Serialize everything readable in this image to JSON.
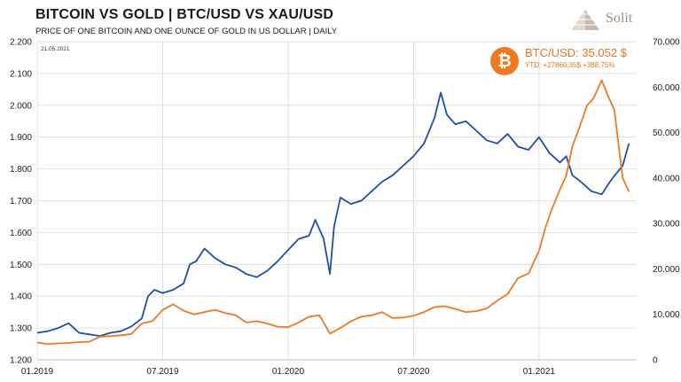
{
  "header": {
    "title": "BITCOIN VS GOLD | BTC/USD VS XAU/USD",
    "subtitle": "PRICE OF ONE BITCOIN AND ONE OUNCE OF GOLD  IN US DOLLAR | DAILY",
    "date": "21.05.2021"
  },
  "logo": {
    "text": "Solit",
    "icon": "pyramid-icon"
  },
  "badge": {
    "symbol": "₿",
    "icon": "bitcoin-icon",
    "label": "BTC/USD: 35.052 $",
    "ytd": "YTD:   +27860,35$   +388,75%"
  },
  "chart_data": {
    "type": "line",
    "x_ticks": [
      "01.2019",
      "07.2019",
      "01.2020",
      "07.2020",
      "01.2021"
    ],
    "x_tick_pos": [
      0,
      6,
      12,
      18,
      24
    ],
    "x_range": [
      0,
      28.67
    ],
    "left_axis": {
      "series": "Gold",
      "ylim": [
        1200,
        2200
      ],
      "ticks": [
        "1.200",
        "1.300",
        "1.400",
        "1.500",
        "1.600",
        "1.700",
        "1.800",
        "1.900",
        "2.000",
        "2.100",
        "2.200"
      ],
      "tick_values": [
        1200,
        1300,
        1400,
        1500,
        1600,
        1700,
        1800,
        1900,
        2000,
        2100,
        2200
      ]
    },
    "right_axis": {
      "series": "BTC/USD",
      "ylim": [
        0,
        70000
      ],
      "ticks": [
        "0",
        "10.000",
        "20.000",
        "30.000",
        "40.000",
        "50.000",
        "60.000",
        "70.000"
      ],
      "tick_values": [
        0,
        10000,
        20000,
        30000,
        40000,
        50000,
        60000,
        70000
      ]
    },
    "grid": true,
    "series": [
      {
        "key": "gold",
        "axis": "left",
        "color": "#1f4fa8",
        "x": [
          0,
          0.5,
          1,
          1.5,
          2,
          2.5,
          3,
          3.5,
          4,
          4.5,
          5,
          5.3,
          5.6,
          6,
          6.5,
          7,
          7.3,
          7.6,
          8,
          8.5,
          9,
          9.5,
          10,
          10.5,
          11,
          11.5,
          12,
          12.5,
          13,
          13.3,
          13.7,
          14,
          14.2,
          14.5,
          15,
          15.5,
          16,
          16.5,
          17,
          17.5,
          18,
          18.5,
          19,
          19.3,
          19.6,
          20,
          20.5,
          21,
          21.5,
          22,
          22.5,
          23,
          23.5,
          24,
          24.5,
          25,
          25.3,
          25.6,
          26,
          26.5,
          27,
          27.5,
          28,
          28.3
        ],
        "y": [
          1285,
          1290,
          1300,
          1315,
          1285,
          1280,
          1275,
          1285,
          1290,
          1305,
          1330,
          1400,
          1420,
          1410,
          1420,
          1440,
          1500,
          1510,
          1550,
          1520,
          1500,
          1490,
          1470,
          1460,
          1480,
          1510,
          1545,
          1580,
          1590,
          1640,
          1580,
          1470,
          1620,
          1710,
          1690,
          1700,
          1730,
          1760,
          1780,
          1810,
          1840,
          1880,
          1960,
          2040,
          1970,
          1940,
          1950,
          1920,
          1890,
          1880,
          1910,
          1870,
          1860,
          1900,
          1850,
          1820,
          1840,
          1780,
          1760,
          1730,
          1720,
          1770,
          1810,
          1880
        ]
      },
      {
        "key": "btc",
        "axis": "right",
        "color": "#ec7a24",
        "x": [
          0,
          0.5,
          1,
          1.5,
          2,
          2.5,
          3,
          3.5,
          4,
          4.5,
          5,
          5.5,
          6,
          6.5,
          7,
          7.5,
          8,
          8.5,
          9,
          9.5,
          10,
          10.5,
          11,
          11.5,
          12,
          12.5,
          13,
          13.5,
          14,
          14.5,
          15,
          15.5,
          16,
          16.5,
          17,
          17.5,
          18,
          18.5,
          19,
          19.5,
          20,
          20.5,
          21,
          21.5,
          22,
          22.5,
          23,
          23.5,
          24,
          24.3,
          24.6,
          25,
          25.3,
          25.6,
          26,
          26.3,
          26.6,
          27,
          27.3,
          27.6,
          28,
          28.3
        ],
        "y": [
          3800,
          3500,
          3600,
          3700,
          3900,
          4000,
          5100,
          5200,
          5400,
          5700,
          8000,
          8500,
          11000,
          12200,
          10800,
          10000,
          10500,
          11000,
          10300,
          9800,
          8200,
          8500,
          8000,
          7300,
          7200,
          8200,
          9500,
          9800,
          5800,
          7000,
          8500,
          9500,
          9800,
          10500,
          9200,
          9300,
          9700,
          10500,
          11600,
          11800,
          11200,
          10500,
          10700,
          11300,
          13000,
          14500,
          18000,
          19000,
          24000,
          29000,
          33000,
          37500,
          40500,
          47000,
          52000,
          56000,
          57500,
          61500,
          58000,
          55000,
          40000,
          37000
        ]
      }
    ]
  }
}
